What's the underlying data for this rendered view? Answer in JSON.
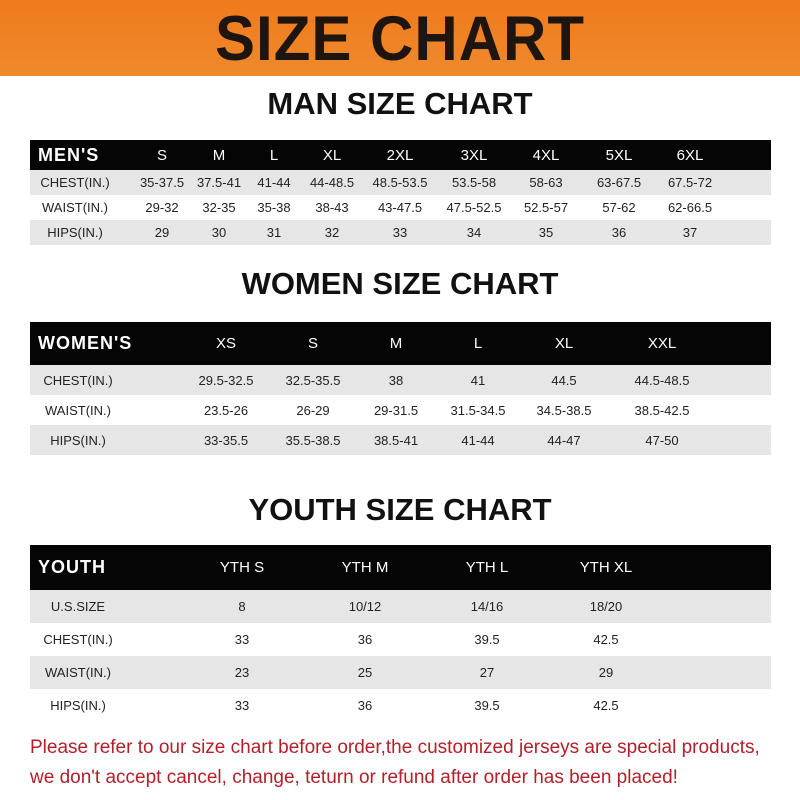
{
  "banner_title": "SIZE CHART",
  "men": {
    "title": "MAN SIZE CHART",
    "header": [
      "MEN'S",
      "S",
      "M",
      "L",
      "XL",
      "2XL",
      "3XL",
      "4XL",
      "5XL",
      "6XL"
    ],
    "rows": [
      [
        "CHEST(IN.)",
        "35-37.5",
        "37.5-41",
        "41-44",
        "44-48.5",
        "48.5-53.5",
        "53.5-58",
        "58-63",
        "63-67.5",
        "67.5-72"
      ],
      [
        "WAIST(IN.)",
        "29-32",
        "32-35",
        "35-38",
        "38-43",
        "43-47.5",
        "47.5-52.5",
        "52.5-57",
        "57-62",
        "62-66.5"
      ],
      [
        "HIPS(IN.)",
        "29",
        "30",
        "31",
        "32",
        "33",
        "34",
        "35",
        "36",
        "37"
      ]
    ]
  },
  "women": {
    "title": "WOMEN SIZE CHART",
    "header": [
      "WOMEN'S",
      "XS",
      "S",
      "M",
      "L",
      "XL",
      "XXL"
    ],
    "rows": [
      [
        "CHEST(IN.)",
        "29.5-32.5",
        "32.5-35.5",
        "38",
        "41",
        "44.5",
        "44.5-48.5"
      ],
      [
        "WAIST(IN.)",
        "23.5-26",
        "26-29",
        "29-31.5",
        "31.5-34.5",
        "34.5-38.5",
        "38.5-42.5"
      ],
      [
        "HIPS(IN.)",
        "33-35.5",
        "35.5-38.5",
        "38.5-41",
        "41-44",
        "44-47",
        "47-50"
      ]
    ]
  },
  "youth": {
    "title": "YOUTH SIZE CHART",
    "header": [
      "YOUTH",
      "YTH S",
      "YTH M",
      "YTH L",
      "YTH XL"
    ],
    "rows": [
      [
        "U.S.SIZE",
        "8",
        "10/12",
        "14/16",
        "18/20"
      ],
      [
        "CHEST(IN.)",
        "33",
        "36",
        "39.5",
        "42.5"
      ],
      [
        "WAIST(IN.)",
        "23",
        "25",
        "27",
        "29"
      ],
      [
        "HIPS(IN.)",
        "33",
        "36",
        "39.5",
        "42.5"
      ]
    ]
  },
  "notice": [
    "Please refer to our size chart before order,the customized jerseys are special products,",
    "we don't accept cancel, change, teturn or refund after order has been placed!"
  ],
  "colors": {
    "banner": "#f07a1c",
    "header_row": "#050505",
    "stripe": "#e6e6e6",
    "notice": "#b3202a"
  }
}
